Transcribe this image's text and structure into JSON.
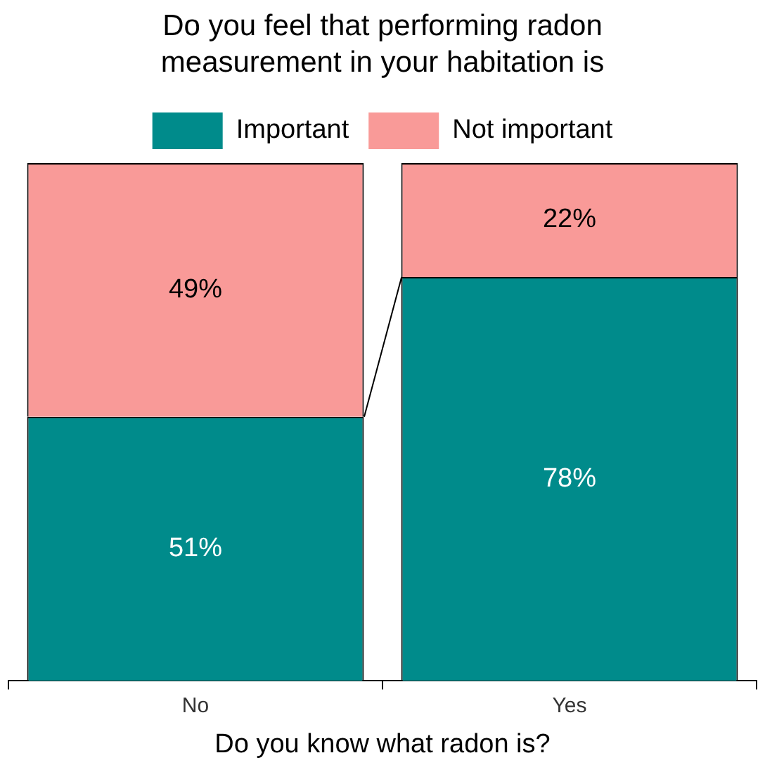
{
  "chart_data": {
    "type": "bar",
    "title": "Do you feel that performing radon measurement in your habitation is",
    "xlabel": "Do you know what radon is?",
    "categories": [
      "No",
      "Yes"
    ],
    "stacked": true,
    "legend": "top",
    "series": [
      {
        "name": "Important",
        "color": "#008b8b",
        "values": [
          51,
          78
        ],
        "value_labels": [
          "51%",
          "78%"
        ]
      },
      {
        "name": "Not important",
        "color": "#f99a98",
        "values": [
          49,
          22
        ],
        "value_labels": [
          "49%",
          "22%"
        ]
      }
    ]
  }
}
